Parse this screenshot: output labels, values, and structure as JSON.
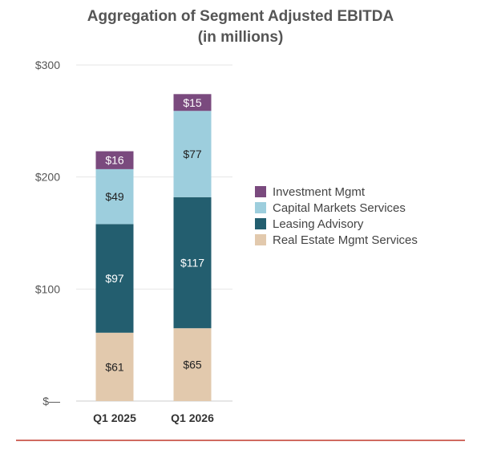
{
  "chart_data": {
    "type": "bar",
    "stacked": true,
    "title": "Aggregation of Segment Adjusted EBITDA",
    "subtitle": "(in millions)",
    "categories": [
      "Q1 2025",
      "Q1 2026"
    ],
    "ylim": [
      0,
      300
    ],
    "yticks": [
      0,
      100,
      200,
      300
    ],
    "ytick_labels": [
      "$—",
      "$100",
      "$200",
      "$300"
    ],
    "legend_position": "right",
    "series": [
      {
        "name": "Real Estate Mgmt Services",
        "color": "#e2c9ad",
        "label_color": "#222222",
        "values": [
          61,
          65
        ],
        "labels": [
          "$61",
          "$65"
        ]
      },
      {
        "name": "Leasing Advisory",
        "color": "#235e6f",
        "label_color": "#ffffff",
        "values": [
          97,
          117
        ],
        "labels": [
          "$97",
          "$117"
        ]
      },
      {
        "name": "Capital Markets Services",
        "color": "#9dcedd",
        "label_color": "#222222",
        "values": [
          49,
          77
        ],
        "labels": [
          "$49",
          "$77"
        ]
      },
      {
        "name": "Investment Mgmt",
        "color": "#7a4a7e",
        "label_color": "#ffffff",
        "values": [
          16,
          15
        ],
        "labels": [
          "$16",
          "$15"
        ]
      }
    ],
    "legend_order": [
      "Investment Mgmt",
      "Capital Markets Services",
      "Leasing Advisory",
      "Real Estate Mgmt Services"
    ]
  },
  "footer_line_color": "#c0392b"
}
